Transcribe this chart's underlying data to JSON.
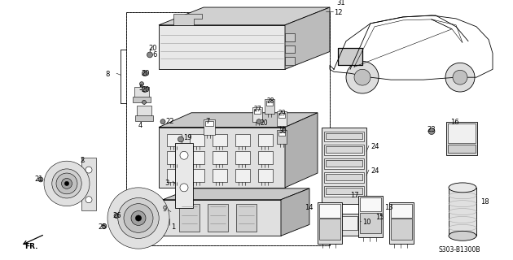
{
  "fig_width": 6.3,
  "fig_height": 3.2,
  "dpi": 100,
  "bg_color": "#ffffff",
  "part_number": "S303-B1300B",
  "lw_thin": 0.5,
  "lw_med": 0.8,
  "lw_thick": 1.2,
  "label_fs": 5.8,
  "gray_light": "#cccccc",
  "gray_med": "#999999",
  "gray_dark": "#666666"
}
